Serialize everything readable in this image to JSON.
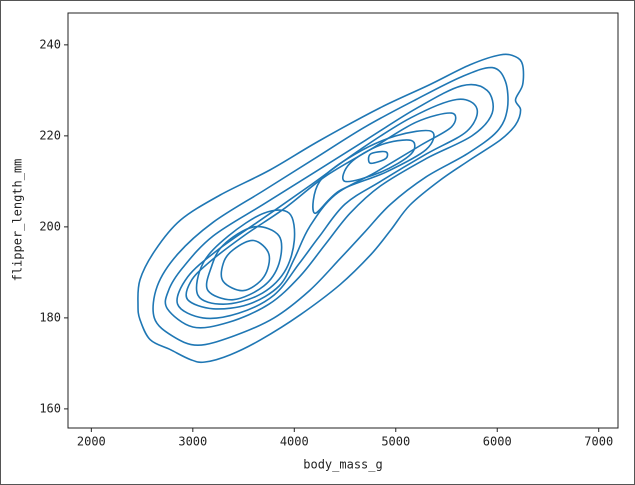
{
  "chart_data": {
    "type": "contour",
    "x_label": "body_mass_g",
    "y_label": "flipper_length_mm",
    "xlim": [
      1770,
      7190
    ],
    "ylim": [
      155.8,
      247
    ],
    "xticks": [
      2000,
      3000,
      4000,
      5000,
      6000,
      7000
    ],
    "yticks": [
      160,
      180,
      200,
      220,
      240
    ],
    "color": "#1f77b4",
    "series": [
      {
        "x": [
          2480,
          2580,
          2780,
          2980,
          3120,
          3370,
          3670,
          4060,
          4450,
          4750,
          4950,
          5140,
          5440,
          5730,
          6030,
          6180,
          6230,
          6180,
          6250,
          6250,
          6180,
          6030,
          5730,
          5330,
          4850,
          4260,
          3760,
          3270,
          2880,
          2630,
          2480,
          2460
        ],
        "y": [
          179.6,
          175.2,
          173,
          170.8,
          170.3,
          171.9,
          175.2,
          180.7,
          187.3,
          193.8,
          199.3,
          204.8,
          210.3,
          214.7,
          219.1,
          222.4,
          225.7,
          227.9,
          231.2,
          235.6,
          237.4,
          237.8,
          235.6,
          231.2,
          226.2,
          219.1,
          212.5,
          207,
          201.5,
          194.9,
          188.4,
          182.9
        ]
      },
      {
        "x": [
          2620,
          2800,
          3050,
          3400,
          3800,
          4150,
          4450,
          4700,
          4950,
          5300,
          5700,
          6000,
          6100,
          6080,
          5950,
          5650,
          5200,
          4700,
          4200,
          3700,
          3200,
          2850,
          2650
        ],
        "y": [
          180,
          176,
          174,
          176,
          180,
          186,
          193,
          199,
          205,
          211,
          216,
          221,
          226,
          232,
          235,
          233,
          228,
          222,
          215,
          208,
          201,
          194,
          187
        ]
      },
      {
        "x": [
          2750,
          3000,
          3350,
          3750,
          4050,
          4300,
          4550,
          4850,
          5300,
          5750,
          5950,
          5900,
          5650,
          5200,
          4700,
          4200,
          3700,
          3200,
          2900,
          2760
        ],
        "y": [
          182,
          178,
          179,
          183,
          189,
          196,
          203,
          209,
          215,
          220,
          225,
          230,
          231,
          226,
          219,
          212,
          205,
          198,
          191,
          186
        ]
      },
      {
        "x": [
          2850,
          3100,
          3450,
          3800,
          4050,
          4250,
          4500,
          4850,
          5300,
          5700,
          5800,
          5600,
          5150,
          4650,
          4150,
          3700,
          3250,
          2950
        ],
        "y": [
          183,
          180,
          181,
          185,
          192,
          198,
          205,
          210,
          216,
          221,
          226,
          228,
          224,
          217,
          209,
          202,
          195,
          189
        ]
      },
      {
        "x": [
          2950,
          3200,
          3550,
          3850,
          4000,
          4150,
          4400,
          4800,
          5250,
          5550,
          5550,
          5200,
          4750,
          4300,
          3900,
          3500,
          3150,
          2980
        ],
        "y": [
          184,
          182,
          183,
          187,
          193,
          200,
          207,
          212,
          218,
          222,
          225,
          223,
          217,
          211,
          204,
          198,
          192,
          188
        ]
      },
      {
        "x": [
          3050,
          3300,
          3650,
          3900,
          4000,
          3950,
          3700,
          3350,
          3100
        ],
        "y": [
          185,
          183,
          185,
          190,
          197,
          203,
          203,
          198,
          192
        ]
      },
      {
        "x": [
          3150,
          3400,
          3700,
          3850,
          3850,
          3600,
          3300,
          3180
        ],
        "y": [
          186,
          184,
          187,
          192,
          198,
          200,
          196,
          191
        ]
      },
      {
        "x": [
          3300,
          3500,
          3700,
          3750,
          3600,
          3400,
          3300
        ],
        "y": [
          188,
          186,
          189,
          194,
          197,
          195,
          192
        ]
      },
      {
        "x": [
          4200,
          4450,
          4900,
          5300,
          5350,
          5000,
          4600,
          4250
        ],
        "y": [
          203,
          208,
          212,
          217,
          221,
          220,
          216,
          210
        ]
      },
      {
        "x": [
          4500,
          4850,
          5150,
          5150,
          4850,
          4550
        ],
        "y": [
          210,
          212,
          216,
          219,
          218,
          214
        ]
      },
      {
        "x": [
          4750,
          4900,
          4900,
          4750
        ],
        "y": [
          214,
          215,
          216.5,
          216
        ]
      }
    ]
  }
}
